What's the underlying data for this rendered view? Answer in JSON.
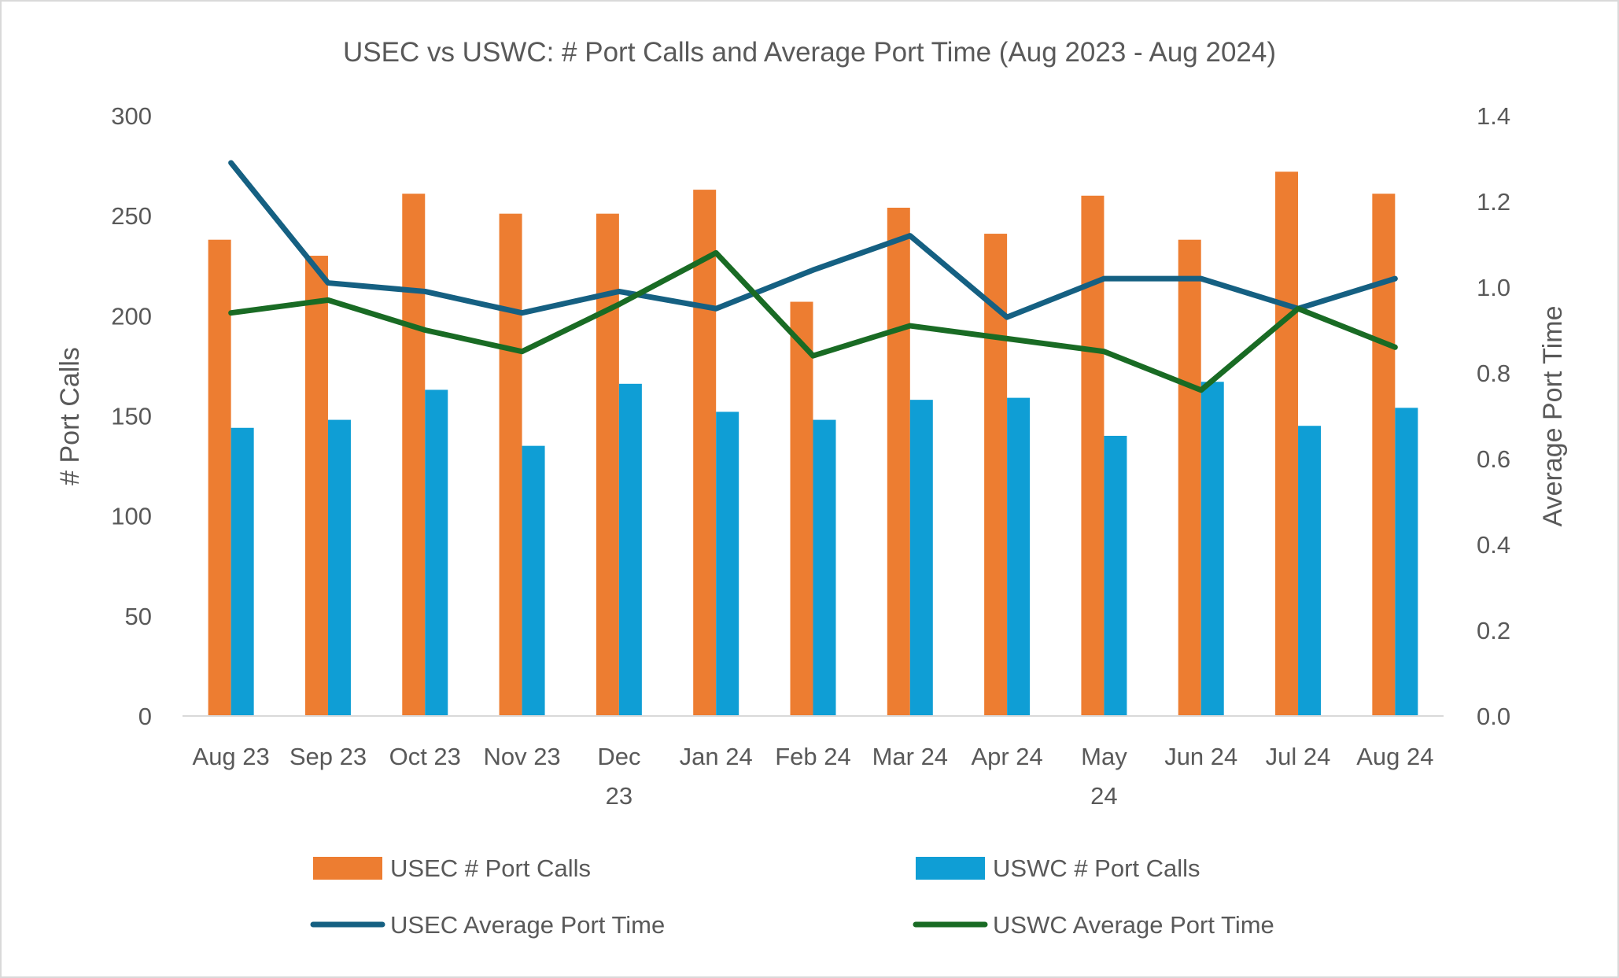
{
  "chart_data": {
    "type": "bar+line",
    "title": "USEC vs USWC: # Port Calls and Average Port Time (Aug 2023 - Aug 2024)",
    "categories": [
      "Aug 23",
      "Sep 23",
      "Oct 23",
      "Nov 23",
      "Dec 23",
      "Jan 24",
      "Feb 24",
      "Mar 24",
      "Apr 24",
      "May 24",
      "Jun 24",
      "Jul 24",
      "Aug 24"
    ],
    "ylabel": "# Port Calls",
    "y2label": "Average Port Time",
    "ylim": [
      0,
      300
    ],
    "y2lim": [
      0,
      1.4
    ],
    "yticks": [
      "0",
      "50",
      "100",
      "150",
      "200",
      "250",
      "300"
    ],
    "y2ticks": [
      "0.0",
      "0.2",
      "0.4",
      "0.6",
      "0.8",
      "1.0",
      "1.2",
      "1.4"
    ],
    "grid": false,
    "legend_position": "bottom",
    "series": [
      {
        "name": "USEC # Port Calls",
        "type": "bar",
        "axis": "left",
        "color": "#ED7D31",
        "values": [
          238,
          230,
          261,
          251,
          251,
          263,
          207,
          254,
          241,
          260,
          238,
          272,
          261
        ]
      },
      {
        "name": "USWC # Port Calls",
        "type": "bar",
        "axis": "left",
        "color": "#0F9ED5",
        "values": [
          144,
          148,
          163,
          135,
          166,
          152,
          148,
          158,
          159,
          140,
          167,
          145,
          154
        ]
      },
      {
        "name": "USEC Average Port Time",
        "type": "line",
        "axis": "right",
        "color": "#156082",
        "values": [
          1.29,
          1.01,
          0.99,
          0.94,
          0.99,
          0.95,
          1.04,
          1.12,
          0.93,
          1.02,
          1.02,
          0.95,
          1.02
        ]
      },
      {
        "name": "USWC Average Port Time",
        "type": "line",
        "axis": "right",
        "color": "#196B24",
        "values": [
          0.94,
          0.97,
          0.9,
          0.85,
          0.96,
          1.08,
          0.84,
          0.91,
          0.88,
          0.85,
          0.76,
          0.95,
          0.86
        ]
      }
    ]
  }
}
